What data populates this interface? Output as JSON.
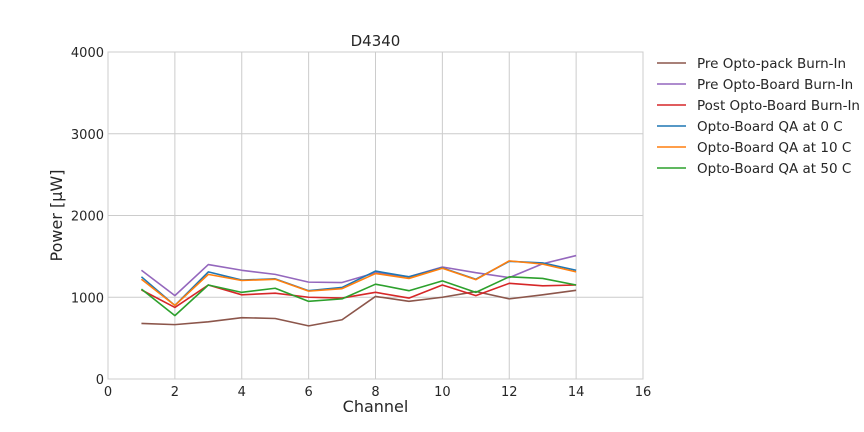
{
  "chart_data": {
    "type": "line",
    "title": "D4340",
    "xlabel": "Channel",
    "ylabel": "Power [μW]",
    "xlim": [
      0,
      16
    ],
    "ylim": [
      0,
      4000
    ],
    "x_ticks": [
      0,
      2,
      4,
      6,
      8,
      10,
      12,
      14,
      16
    ],
    "y_ticks": [
      0,
      1000,
      2000,
      3000,
      4000
    ],
    "grid": true,
    "legend_position": "outside right, top",
    "x": [
      1,
      2,
      3,
      4,
      5,
      6,
      7,
      8,
      9,
      10,
      11,
      12,
      13,
      14
    ],
    "series": [
      {
        "name": "Pre Opto-pack Burn-In",
        "color": "#8c564b",
        "values": [
          680,
          665,
          700,
          750,
          740,
          650,
          725,
          1010,
          950,
          1000,
          1070,
          980,
          1030,
          1085
        ]
      },
      {
        "name": "Pre Opto-Board Burn-In",
        "color": "#9467bd",
        "values": [
          1330,
          1020,
          1400,
          1330,
          1280,
          1185,
          1180,
          1300,
          1250,
          1370,
          1300,
          1240,
          1410,
          1510
        ]
      },
      {
        "name": "Post Opto-Board Burn-In",
        "color": "#d62728",
        "values": [
          1090,
          875,
          1150,
          1030,
          1050,
          1000,
          990,
          1060,
          990,
          1150,
          1020,
          1170,
          1140,
          1150
        ]
      },
      {
        "name": "Opto-Board QA at 0 C",
        "color": "#1f77b4",
        "values": [
          1250,
          900,
          1310,
          1210,
          1225,
          1080,
          1120,
          1320,
          1250,
          1360,
          1220,
          1440,
          1420,
          1330
        ]
      },
      {
        "name": "Opto-Board QA at 10 C",
        "color": "#ff7f0e",
        "values": [
          1220,
          900,
          1280,
          1205,
          1220,
          1075,
          1105,
          1290,
          1230,
          1355,
          1215,
          1445,
          1405,
          1310
        ]
      },
      {
        "name": "Opto-Board QA at 50 C",
        "color": "#2ca02c",
        "values": [
          1100,
          775,
          1150,
          1060,
          1110,
          950,
          980,
          1160,
          1080,
          1200,
          1060,
          1250,
          1230,
          1150
        ]
      }
    ]
  }
}
